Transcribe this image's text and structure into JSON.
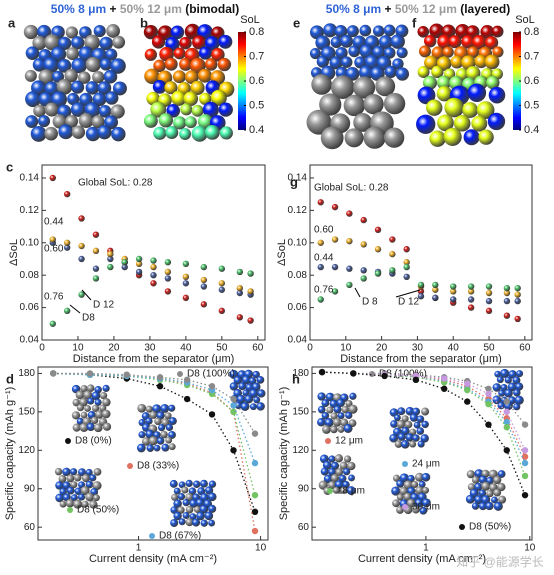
{
  "figure": {
    "headers": [
      [
        {
          "text": "50% 8 μm",
          "color": "#2f63d6"
        },
        {
          "text": " + ",
          "color": "#111111"
        },
        {
          "text": "50% 12 μm",
          "color": "#9a9a9a"
        },
        {
          "text": " (bimodal)",
          "color": "#111111"
        }
      ],
      [
        {
          "text": "50% 8 μm",
          "color": "#2f63d6"
        },
        {
          "text": " + ",
          "color": "#111111"
        },
        {
          "text": "50% 12 μm",
          "color": "#9a9a9a"
        },
        {
          "text": " (layered)",
          "color": "#111111"
        }
      ]
    ],
    "panel_labels": [
      "a",
      "b",
      "e",
      "f"
    ],
    "colorbars": [
      {
        "title": "SoL",
        "ticks": [
          0.8,
          0.7,
          0.6,
          0.5,
          0.4
        ]
      },
      {
        "title": "SoL",
        "ticks": [
          0.8,
          0.7,
          0.6,
          0.5,
          0.4
        ]
      }
    ],
    "watermark": "知乎 @能源学长"
  },
  "chart_data": [
    {
      "type": "scatter",
      "panel_label": "c",
      "ylabel": "ΔSoL",
      "xlabel": "Distance from the separator (μm)",
      "xlim": [
        0,
        62
      ],
      "xticks": [
        0,
        10,
        20,
        30,
        40,
        50,
        60
      ],
      "ylim": [
        0.04,
        0.148
      ],
      "yticks": [
        0.04,
        0.06,
        0.08,
        {
          "value": 0.1,
          "label": "0.10"
        },
        0.12,
        0.14
      ],
      "x": [
        3,
        7,
        11,
        15,
        19,
        23,
        27,
        31,
        35,
        40,
        45,
        50,
        55,
        58
      ],
      "series": [
        {
          "name": "Global SoL: 0.28",
          "color": "#d0211c",
          "values": [
            0.14,
            0.13,
            0.115,
            0.105,
            0.095,
            0.088,
            0.08,
            0.075,
            0.07,
            0.066,
            0.062,
            0.058,
            0.054,
            0.052
          ]
        },
        {
          "name": "0.44",
          "color": "#4a5f9c",
          "values": [
            0.1,
            0.097,
            0.09,
            0.084,
            0.09,
            0.085,
            0.082,
            0.08,
            0.078,
            0.075,
            0.073,
            0.071,
            0.069,
            0.068
          ]
        },
        {
          "name": "0.60",
          "color": "#eeb02a",
          "values": [
            0.102,
            0.1,
            0.098,
            0.095,
            0.093,
            0.09,
            0.087,
            0.085,
            0.082,
            0.079,
            0.077,
            0.075,
            0.072,
            0.07
          ]
        },
        {
          "name": "0.76",
          "color": "#4cbf6a",
          "values": [
            0.05,
            0.058,
            0.068,
            0.078,
            0.085,
            0.088,
            0.09,
            0.089,
            0.088,
            0.087,
            0.085,
            0.084,
            0.082,
            0.081
          ]
        }
      ],
      "annotations": [
        "D 12",
        "D8"
      ]
    },
    {
      "type": "scatter",
      "panel_label": "g",
      "ylabel": "ΔSoL",
      "xlabel": "Distance from the separator (μm)",
      "xlim": [
        0,
        62
      ],
      "xticks": [
        0,
        10,
        20,
        30,
        40,
        50,
        60
      ],
      "ylim": [
        0.04,
        0.148
      ],
      "yticks": [
        0.04,
        0.06,
        0.08,
        {
          "value": 0.1,
          "label": "0.10"
        },
        0.12,
        0.14
      ],
      "x": [
        3,
        7,
        11,
        15,
        19,
        23,
        27,
        31,
        35,
        40,
        45,
        50,
        55,
        58
      ],
      "series": [
        {
          "name": "Global SoL: 0.28",
          "color": "#d0211c",
          "values": [
            0.125,
            0.122,
            0.118,
            0.114,
            0.108,
            0.102,
            0.096,
            0.07,
            0.066,
            0.063,
            0.06,
            0.058,
            0.055,
            0.053
          ]
        },
        {
          "name": "0.60",
          "color": "#eeb02a",
          "values": [
            0.1,
            0.102,
            0.101,
            0.099,
            0.096,
            0.093,
            0.088,
            0.073,
            0.071,
            0.07,
            0.07,
            0.069,
            0.069,
            0.068
          ]
        },
        {
          "name": "0.44",
          "color": "#4a5f9c",
          "values": [
            0.085,
            0.085,
            0.084,
            0.083,
            0.082,
            0.081,
            0.079,
            0.067,
            0.066,
            0.065,
            0.065,
            0.064,
            0.064,
            0.064
          ]
        },
        {
          "name": "0.76",
          "color": "#4cbf6a",
          "values": [
            0.065,
            0.07,
            0.074,
            0.078,
            0.081,
            0.083,
            0.085,
            0.074,
            0.074,
            0.073,
            0.073,
            0.073,
            0.072,
            0.072
          ]
        }
      ],
      "annotations": [
        "D 8",
        "D 12"
      ]
    },
    {
      "type": "line",
      "panel_label": "d",
      "ylabel": "Specific capacity (mAh g⁻¹)",
      "xlabel": "Current density (mA cm⁻²)",
      "xscale": "log",
      "xlim": [
        0.15,
        11.5
      ],
      "xticks": [
        1,
        10
      ],
      "ylim": [
        50,
        185
      ],
      "yticks": [
        60,
        90,
        120,
        150,
        180
      ],
      "x": [
        0.2,
        0.4,
        0.8,
        1.5,
        2.5,
        4,
        6,
        9
      ],
      "series": [
        {
          "name": "D8 (0%)",
          "color": "#111111",
          "values": [
            180,
            179,
            176,
            170,
            160,
            148,
            120,
            72
          ]
        },
        {
          "name": "D8 (33%)",
          "color": "#e07060",
          "values": [
            180,
            179,
            178,
            176,
            172,
            165,
            150,
            57
          ]
        },
        {
          "name": "D8 (50%)",
          "color": "#72c462",
          "values": [
            180,
            179,
            178,
            175,
            171,
            164,
            150,
            85
          ]
        },
        {
          "name": "D8 (67%)",
          "color": "#5aa8d8",
          "values": [
            180,
            179,
            178,
            176,
            173,
            167,
            155,
            110
          ]
        },
        {
          "name": "D8 (100%)",
          "color": "#8a8a8a",
          "values": [
            180,
            180,
            179,
            177,
            175,
            170,
            160,
            133
          ]
        }
      ]
    },
    {
      "type": "line",
      "panel_label": "h",
      "ylabel": "Specific capacity (mAh g⁻¹)",
      "xlabel": "Current density (mA cm⁻²)",
      "xscale": "log",
      "xlim": [
        0.08,
        10.5
      ],
      "xticks": [
        1,
        10
      ],
      "ylim": [
        50,
        185
      ],
      "yticks": [
        60,
        90,
        120,
        150,
        180
      ],
      "x": [
        0.1,
        0.2,
        0.4,
        0.8,
        1.5,
        2.5,
        4,
        6,
        9
      ],
      "series": [
        {
          "name": "D8 (100%)",
          "color": "#8a8a8a",
          "values": [
            181,
            180,
            180,
            179,
            177,
            174,
            168,
            158,
            140
          ]
        },
        {
          "name": "12 μm",
          "color": "#e07060",
          "values": [
            181,
            180,
            179,
            178,
            175,
            170,
            160,
            145,
            115
          ]
        },
        {
          "name": "24 μm",
          "color": "#5aa8d8",
          "values": [
            181,
            180,
            179,
            177,
            174,
            168,
            158,
            142,
            110
          ]
        },
        {
          "name": "18 μm",
          "color": "#72c462",
          "values": [
            181,
            180,
            179,
            177,
            173,
            167,
            156,
            138,
            100
          ]
        },
        {
          "name": "30 μm",
          "color": "#c79ae0",
          "values": [
            181,
            180,
            179,
            178,
            176,
            172,
            164,
            150,
            120
          ]
        },
        {
          "name": "D8 (50%)",
          "color": "#111111",
          "values": [
            181,
            180,
            178,
            175,
            168,
            158,
            140,
            120,
            85
          ]
        }
      ]
    }
  ]
}
